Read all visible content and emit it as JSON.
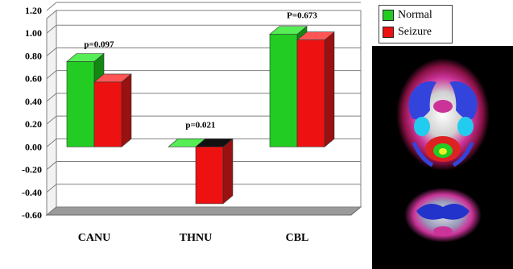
{
  "chart_data": {
    "type": "bar",
    "categories": [
      "CANU",
      "THNU",
      "CBL"
    ],
    "series": [
      {
        "name": "Normal",
        "color": "#22cc22",
        "values": [
          0.75,
          0.0,
          0.99
        ]
      },
      {
        "name": "Seizure",
        "color": "#ee1111",
        "values": [
          0.57,
          -0.5,
          0.94
        ]
      }
    ],
    "annotations": [
      "p=0.097",
      "p=0.021",
      "P=0.673"
    ],
    "ylim": [
      -0.6,
      1.2
    ],
    "yticks": [
      "1.20",
      "1.00",
      "0.80",
      "0.60",
      "0.40",
      "0.20",
      "0.00",
      "-0.20",
      "-0.40",
      "-0.60"
    ],
    "legend_position": "top-right",
    "grid": true
  }
}
